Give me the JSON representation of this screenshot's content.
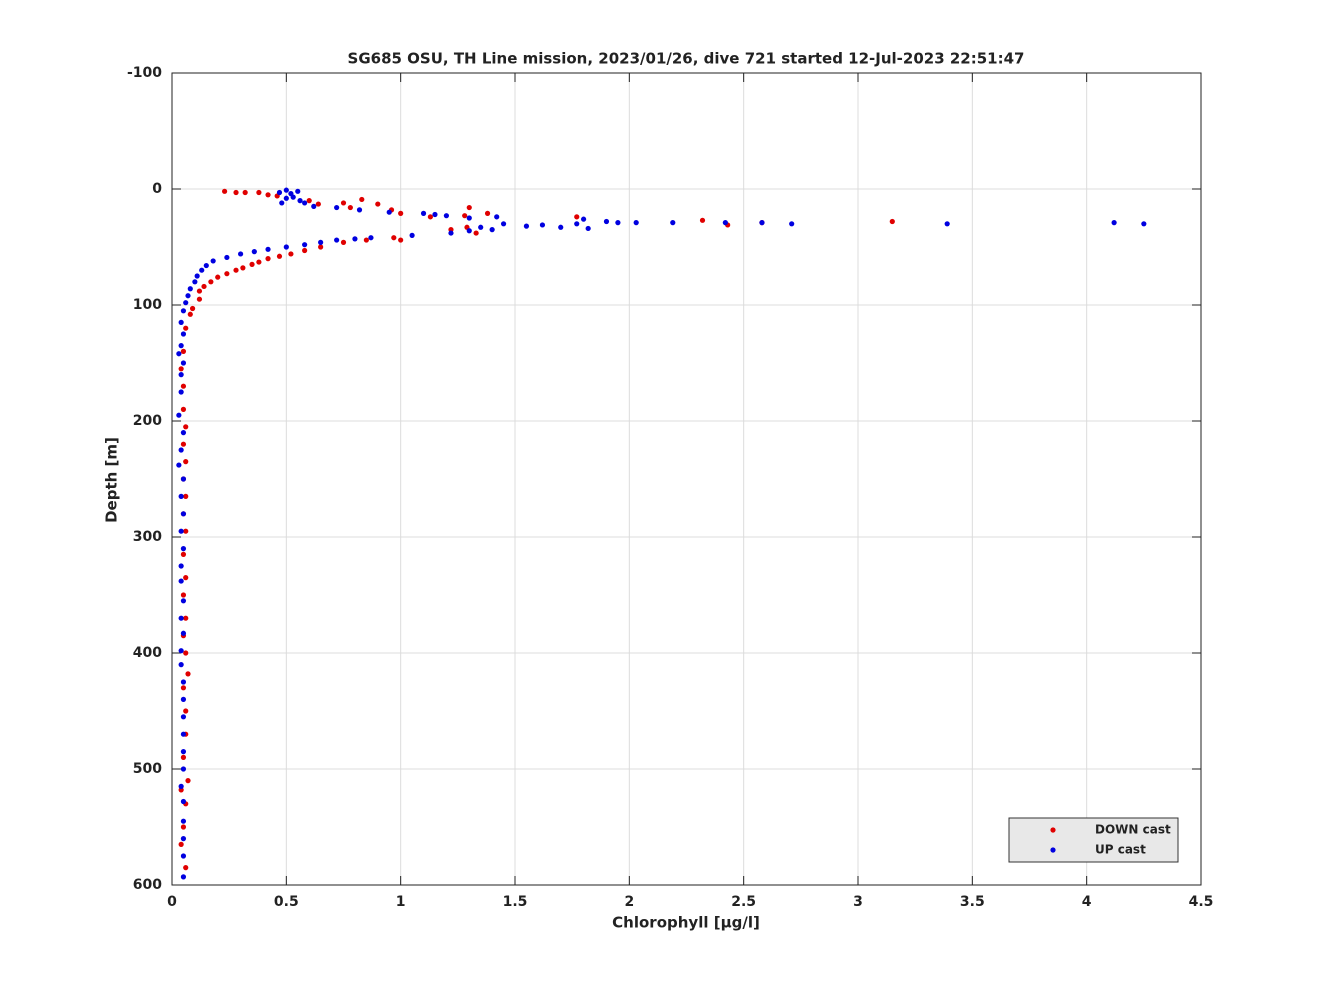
{
  "chart_data": {
    "type": "scatter",
    "title": "SG685 OSU, TH Line mission, 2023/01/26, dive 721 started 12-Jul-2023 22:51:47",
    "x_label": "Chlorophyll [μg/l]",
    "y_label": "Depth [m]",
    "xlim": [
      0,
      4.5
    ],
    "xticks": [
      0,
      0.5,
      1,
      1.5,
      2,
      2.5,
      3,
      3.5,
      4,
      4.5
    ],
    "ylim": [
      -100,
      600
    ],
    "yticks": [
      -100,
      0,
      100,
      200,
      300,
      400,
      500,
      600
    ],
    "y_reversed": true,
    "grid": true,
    "legend": "lower right",
    "series": [
      {
        "name": "DOWN cast",
        "color": "#e00000",
        "x": [
          0.23,
          0.28,
          0.32,
          0.38,
          0.42,
          0.46,
          0.6,
          0.64,
          0.75,
          0.78,
          0.83,
          0.9,
          0.96,
          1.0,
          1.13,
          1.28,
          1.3,
          1.38,
          1.22,
          1.29,
          1.33,
          1.77,
          2.32,
          2.43,
          2.58,
          3.15,
          0.97,
          1.0,
          0.85,
          0.75,
          0.65,
          0.58,
          0.52,
          0.47,
          0.42,
          0.38,
          0.35,
          0.31,
          0.28,
          0.24,
          0.2,
          0.17,
          0.14,
          0.12,
          0.12,
          0.09,
          0.08,
          0.06,
          0.05,
          0.04,
          0.05,
          0.05,
          0.06,
          0.05,
          0.06,
          0.05,
          0.06,
          0.05,
          0.06,
          0.05,
          0.06,
          0.05,
          0.06,
          0.05,
          0.06,
          0.07,
          0.05,
          0.06,
          0.06,
          0.05,
          0.07,
          0.04,
          0.06,
          0.05,
          0.04,
          0.06
        ],
        "y": [
          2,
          3,
          3,
          3,
          5,
          6,
          10,
          13,
          12,
          16,
          9,
          13,
          18,
          21,
          24,
          23,
          16,
          21,
          35,
          33,
          38,
          24,
          27,
          31,
          29,
          28,
          42,
          44,
          44,
          46,
          50,
          53,
          56,
          58,
          60,
          63,
          65,
          68,
          70,
          73,
          76,
          80,
          84,
          88,
          95,
          103,
          108,
          120,
          140,
          155,
          170,
          190,
          205,
          220,
          235,
          250,
          265,
          280,
          295,
          315,
          335,
          350,
          370,
          385,
          400,
          418,
          430,
          450,
          470,
          490,
          510,
          518,
          530,
          550,
          565,
          585
        ]
      },
      {
        "name": "UP cast",
        "color": "#0000e0",
        "x": [
          0.47,
          0.5,
          0.52,
          0.55,
          0.53,
          0.5,
          0.56,
          0.48,
          0.58,
          0.62,
          0.72,
          0.82,
          0.95,
          1.1,
          1.15,
          1.2,
          1.3,
          1.42,
          1.45,
          1.35,
          1.3,
          1.4,
          1.55,
          1.62,
          1.7,
          1.77,
          1.82,
          1.8,
          1.9,
          1.95,
          2.03,
          2.19,
          2.42,
          2.58,
          2.71,
          3.39,
          4.12,
          4.25,
          1.22,
          1.05,
          0.87,
          0.8,
          0.72,
          0.65,
          0.58,
          0.5,
          0.42,
          0.36,
          0.3,
          0.24,
          0.18,
          0.15,
          0.13,
          0.11,
          0.1,
          0.08,
          0.07,
          0.06,
          0.05,
          0.04,
          0.05,
          0.04,
          0.03,
          0.05,
          0.04,
          0.04,
          0.03,
          0.05,
          0.04,
          0.03,
          0.05,
          0.04,
          0.05,
          0.04,
          0.05,
          0.04,
          0.04,
          0.05,
          0.04,
          0.05,
          0.04,
          0.04,
          0.05,
          0.05,
          0.05,
          0.05,
          0.05,
          0.05,
          0.04,
          0.05,
          0.05,
          0.05,
          0.05,
          0.05
        ],
        "y": [
          3,
          1,
          4,
          2,
          7,
          8,
          10,
          12,
          12,
          15,
          16,
          18,
          20,
          21,
          22,
          23,
          25,
          24,
          30,
          33,
          36,
          35,
          32,
          31,
          33,
          30,
          34,
          26,
          28,
          29,
          29,
          29,
          29,
          29,
          30,
          30,
          29,
          30,
          38,
          40,
          42,
          43,
          44,
          46,
          48,
          50,
          52,
          54,
          56,
          59,
          62,
          66,
          70,
          75,
          80,
          86,
          92,
          98,
          105,
          115,
          125,
          135,
          142,
          150,
          160,
          175,
          195,
          210,
          225,
          238,
          250,
          265,
          280,
          295,
          310,
          325,
          338,
          355,
          370,
          383,
          398,
          410,
          425,
          440,
          455,
          470,
          485,
          500,
          515,
          528,
          545,
          560,
          575,
          593
        ]
      }
    ]
  }
}
